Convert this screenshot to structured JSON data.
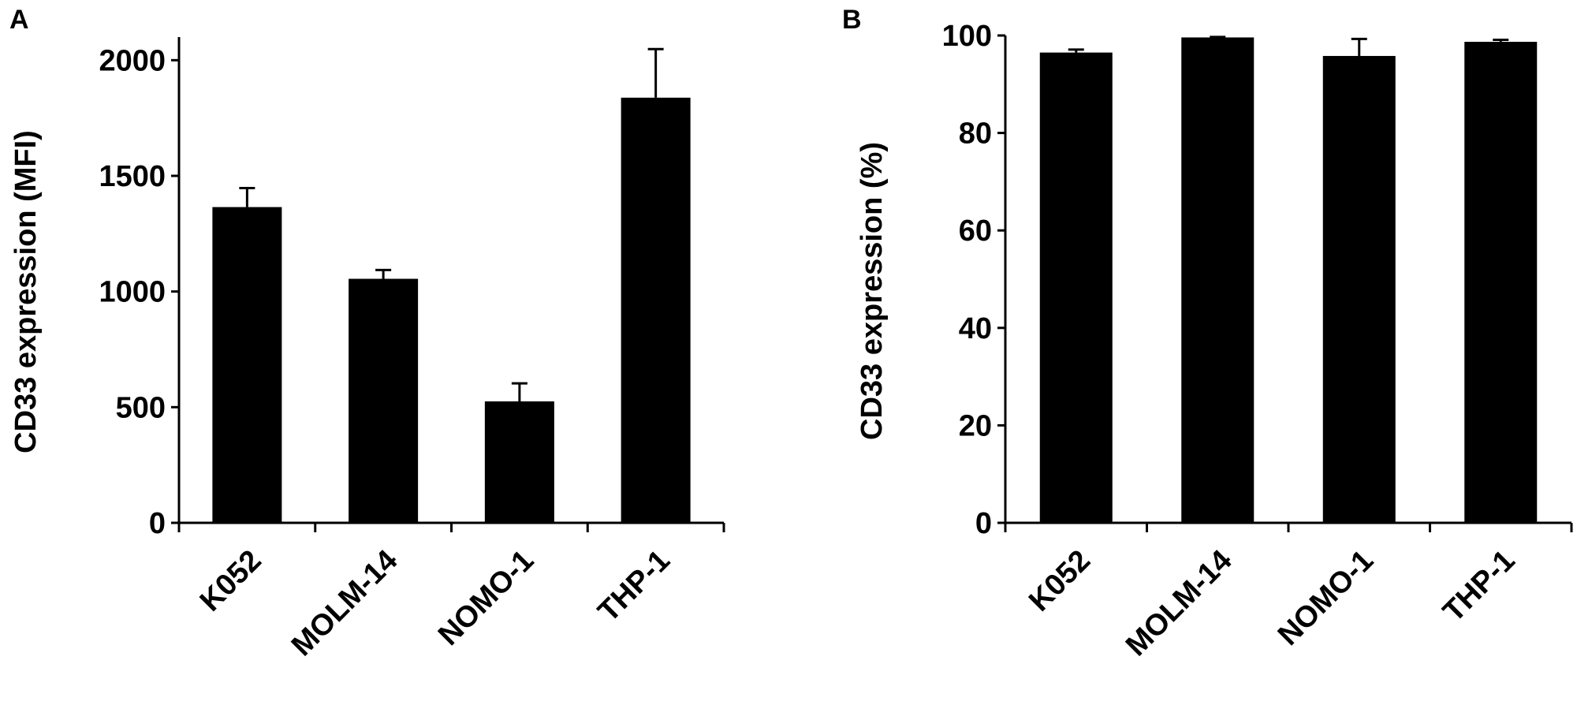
{
  "chart_data": [
    {
      "type": "bar",
      "panel_label": "A",
      "title": "",
      "xlabel": "",
      "ylabel": "CD33 expression (MFI)",
      "categories": [
        "K052",
        "MOLM-14",
        "NOMO-1",
        "THP-1"
      ],
      "values": [
        1365,
        1055,
        525,
        1838
      ],
      "errors": [
        82,
        38,
        78,
        210
      ],
      "ylim": [
        0,
        2100
      ],
      "yticks": [
        0,
        500,
        1000,
        1500,
        2000
      ],
      "grid": false,
      "bar_color": "#000000",
      "error_bar_style": "upper cap only",
      "x_label_rotation": "-45 degrees"
    },
    {
      "type": "bar",
      "panel_label": "B",
      "title": "",
      "xlabel": "",
      "ylabel": "CD33 expression (%)",
      "categories": [
        "K052",
        "MOLM-14",
        "NOMO-1",
        "THP-1"
      ],
      "values": [
        96.5,
        99.6,
        95.8,
        98.7
      ],
      "errors": [
        0.6,
        0.1,
        3.5,
        0.4
      ],
      "ylim": [
        0,
        100
      ],
      "yticks": [
        0,
        20,
        40,
        60,
        80,
        100
      ],
      "grid": false,
      "bar_color": "#000000",
      "error_bar_style": "upper cap only",
      "x_label_rotation": "-45 degrees"
    }
  ]
}
